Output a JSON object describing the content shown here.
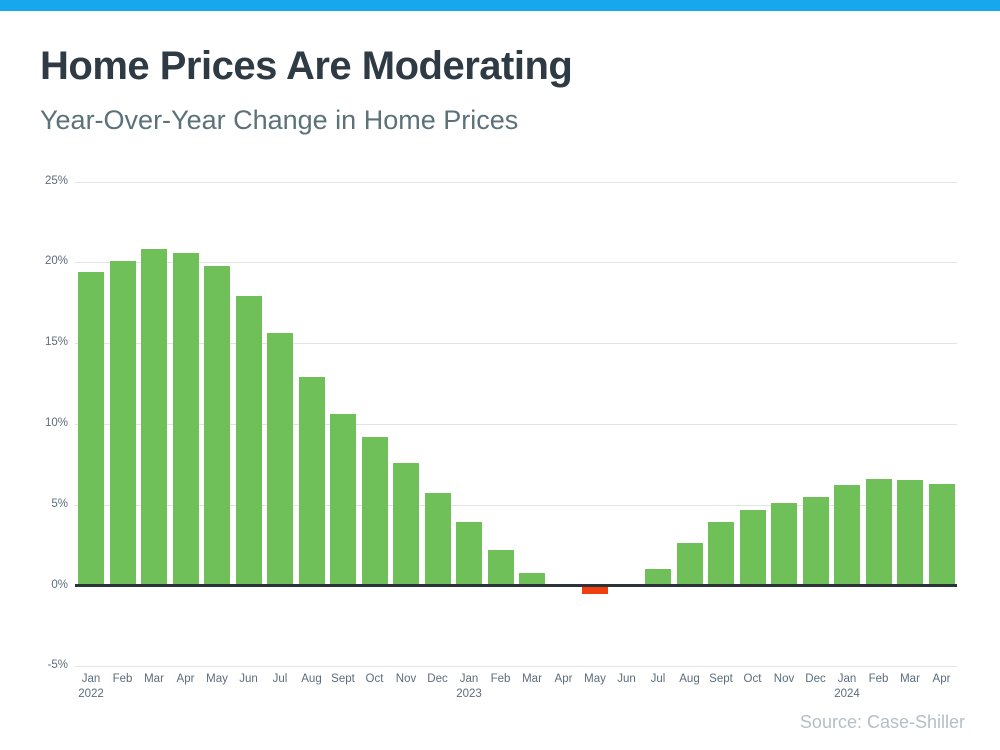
{
  "topbar": {
    "color": "#16a7ec"
  },
  "header": {
    "title": "Home Prices Are Moderating",
    "subtitle": "Year-Over-Year Change in Home Prices"
  },
  "footer": {
    "source": "Source: Case-Shiller"
  },
  "chart_data": {
    "type": "bar",
    "title": "Home Prices Are Moderating",
    "subtitle": "Year-Over-Year Change in Home Prices",
    "unit": "%",
    "source": "Source: Case-Shiller",
    "categories": [
      {
        "month": "Jan",
        "year": "2022"
      },
      {
        "month": "Feb"
      },
      {
        "month": "Mar"
      },
      {
        "month": "Apr"
      },
      {
        "month": "May"
      },
      {
        "month": "Jun"
      },
      {
        "month": "Jul"
      },
      {
        "month": "Aug"
      },
      {
        "month": "Sept"
      },
      {
        "month": "Oct"
      },
      {
        "month": "Nov"
      },
      {
        "month": "Dec"
      },
      {
        "month": "Jan",
        "year": "2023"
      },
      {
        "month": "Feb"
      },
      {
        "month": "Mar"
      },
      {
        "month": "Apr"
      },
      {
        "month": "May"
      },
      {
        "month": "Jun"
      },
      {
        "month": "Jul"
      },
      {
        "month": "Aug"
      },
      {
        "month": "Sept"
      },
      {
        "month": "Oct"
      },
      {
        "month": "Nov"
      },
      {
        "month": "Dec"
      },
      {
        "month": "Jan",
        "year": "2024"
      },
      {
        "month": "Feb"
      },
      {
        "month": "Mar"
      },
      {
        "month": "Apr"
      }
    ],
    "values": [
      19.4,
      20.1,
      20.8,
      20.6,
      19.8,
      17.9,
      15.6,
      12.9,
      10.6,
      9.2,
      7.6,
      5.7,
      3.9,
      2.2,
      0.8,
      0.0,
      -0.5,
      0.0,
      1.0,
      2.6,
      3.9,
      4.7,
      5.1,
      5.5,
      6.2,
      6.6,
      6.5,
      6.3
    ],
    "y_ticks": [
      {
        "label": "25%",
        "value": 25
      },
      {
        "label": "20%",
        "value": 20
      },
      {
        "label": "15%",
        "value": 15
      },
      {
        "label": "10%",
        "value": 10
      },
      {
        "label": "5%",
        "value": 5
      },
      {
        "label": "0%",
        "value": 0
      },
      {
        "label": "-5%",
        "value": -5
      }
    ],
    "ylim": [
      -5,
      25
    ],
    "grid": true,
    "legend": false,
    "colors": {
      "positive_bar": "#70c05a",
      "negative_bar": "#f03e0e",
      "zero_line": "#2c3338",
      "gridline": "#e3e3e3",
      "tick_label": "#5d6c7c"
    }
  }
}
